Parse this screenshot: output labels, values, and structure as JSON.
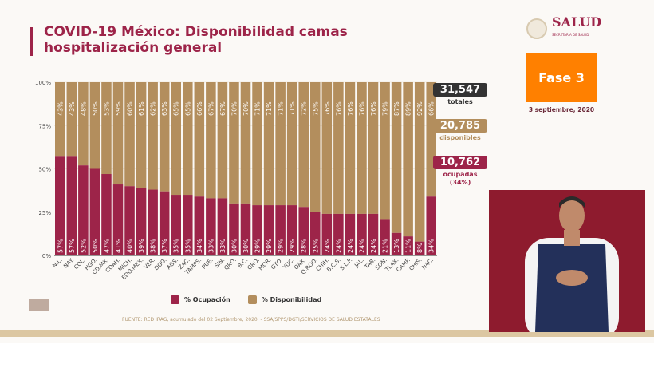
{
  "title": "COVID-19 México: Disponibilidad camas hospitalización general",
  "colors": {
    "ocupacion": "#9d2449",
    "disponibilidad": "#b38e5d",
    "title": "#9d2449",
    "fase": "#ff8000"
  },
  "chart_data": {
    "type": "bar",
    "stacked": true,
    "ylim": [
      0,
      100
    ],
    "yticks": [
      "0%",
      "25%",
      "50%",
      "75%",
      "100%"
    ],
    "categories": [
      "N.L.",
      "NAY.",
      "COL.",
      "HGO.",
      "CD.MX.",
      "COAH.",
      "MICH.",
      "EDO.MEX.",
      "VER.",
      "DGO.",
      "AGS.",
      "ZAC.",
      "TAMPS.",
      "PUE.",
      "SIN.",
      "QRO.",
      "B.C.",
      "GRO.",
      "MOR.",
      "GTO.",
      "YUC.",
      "OAX.",
      "Q.ROO.",
      "CHIH.",
      "B.C.S.",
      "S.L.P.",
      "JAL.",
      "TAB.",
      "SON.",
      "TLAX.",
      "CAMP.",
      "CHIS.",
      "NAC."
    ],
    "series": [
      {
        "name": "% Ocupación",
        "values": [
          57,
          57,
          52,
          50,
          47,
          41,
          40,
          39,
          38,
          37,
          35,
          35,
          34,
          33,
          33,
          30,
          30,
          29,
          29,
          29,
          29,
          28,
          25,
          24,
          24,
          24,
          24,
          24,
          21,
          13,
          11,
          8,
          34
        ]
      },
      {
        "name": "% Disponibilidad",
        "values": [
          43,
          43,
          48,
          50,
          53,
          59,
          60,
          61,
          62,
          63,
          65,
          65,
          66,
          67,
          67,
          70,
          70,
          71,
          71,
          71,
          71,
          72,
          75,
          76,
          76,
          76,
          76,
          76,
          79,
          87,
          89,
          92,
          66
        ]
      }
    ],
    "legend": "bottom"
  },
  "stats": {
    "totales": {
      "value": "31,547",
      "label": "totales"
    },
    "disponibles": {
      "value": "20,785",
      "label": "disponibles"
    },
    "ocupadas": {
      "value": "10,762",
      "label": "ocupadas",
      "pct": "(34%)"
    }
  },
  "logo": {
    "name": "SALUD",
    "sub": "SECRETARÍA DE SALUD"
  },
  "fase": "Fase 3",
  "date": "3 septiembre, 2020",
  "source": "FUENTE: RED IRAG, acumulado del 02 Septiembre, 2020. -  SSA/SPPS/DGTI/SERVICIOS DE SALUD ESTATALES",
  "icons": {
    "seal": "mexico-seal-icon",
    "interpreter": "sign-language-interpreter-video"
  }
}
